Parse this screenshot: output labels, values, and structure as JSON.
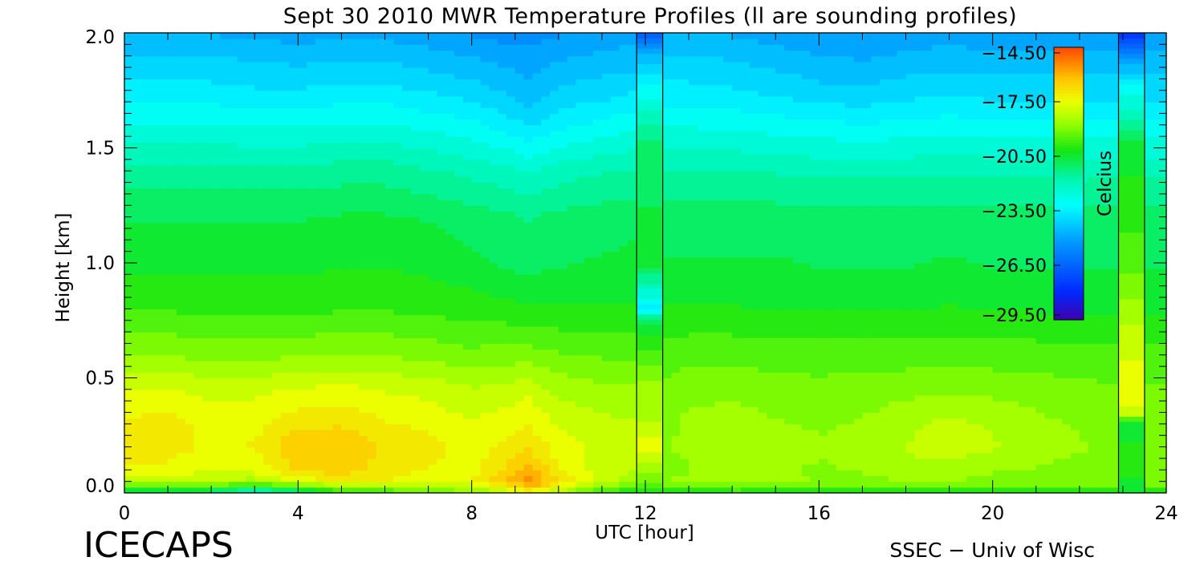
{
  "chart_data": {
    "type": "heatmap",
    "title": "Sept 30 2010 MWR Temperature Profiles (ll are sounding profiles)",
    "xlabel": "UTC [hour]",
    "ylabel": "Height [km]",
    "xlim": [
      0,
      24
    ],
    "ylim": [
      0,
      2.0
    ],
    "x_ticks": [
      "0",
      "4",
      "8",
      "12",
      "16",
      "20",
      "24"
    ],
    "y_ticks": [
      "0.0",
      "0.5",
      "1.0",
      "1.5",
      "2.0"
    ],
    "colorbar": {
      "label": "Celcius",
      "min": -29.5,
      "max": -14.5,
      "ticks": [
        "-14.50",
        "-17.50",
        "-20.50",
        "-23.50",
        "-26.50",
        "-29.50"
      ]
    },
    "sounding_profiles": [
      {
        "start_hour": 11.8,
        "end_hour": 12.4
      },
      {
        "start_hour": 22.9,
        "end_hour": 23.5
      }
    ],
    "heights_km": [
      0.0,
      0.05,
      0.1,
      0.2,
      0.3,
      0.45,
      0.6,
      0.8,
      1.0,
      1.2,
      1.4,
      1.6,
      1.75,
      1.85,
      2.0
    ],
    "hours": [
      0.3,
      1,
      2,
      3,
      4,
      5,
      6,
      7,
      8,
      9,
      9.3,
      10,
      11,
      11.8,
      12.5,
      13,
      14,
      15,
      16,
      17,
      18,
      19,
      20,
      21,
      22,
      22.9
    ],
    "temperature_c": [
      [
        -21.0,
        -21.2,
        -21.5,
        -22.5,
        -21.8,
        -20.5,
        -20.0,
        -19.5,
        -19.0,
        -18.0,
        -17.5,
        -18.5,
        -20.0,
        -20.5,
        -20.5,
        -20.5,
        -20.2,
        -20.3,
        -20.3,
        -20.3,
        -20.3,
        -20.3,
        -20.3,
        -20.3,
        -20.3,
        -20.3
      ],
      [
        -18.5,
        -18.3,
        -18.2,
        -18.5,
        -17.8,
        -17.0,
        -17.3,
        -17.5,
        -17.3,
        -16.0,
        -15.3,
        -16.8,
        -18.0,
        -18.5,
        -18.8,
        -18.5,
        -18.3,
        -18.6,
        -18.8,
        -18.9,
        -18.8,
        -18.8,
        -18.9,
        -18.8,
        -18.9,
        -18.9
      ],
      [
        -17.4,
        -17.4,
        -17.7,
        -17.6,
        -16.6,
        -16.5,
        -17.0,
        -17.3,
        -17.5,
        -16.4,
        -16.0,
        -17.2,
        -18.0,
        -18.3,
        -18.9,
        -18.8,
        -18.5,
        -18.7,
        -18.8,
        -18.7,
        -18.4,
        -18.4,
        -18.7,
        -18.8,
        -18.9,
        -19.0
      ],
      [
        -16.9,
        -17.0,
        -17.4,
        -17.2,
        -16.3,
        -16.3,
        -16.8,
        -17.0,
        -17.5,
        -17.0,
        -16.8,
        -17.5,
        -17.9,
        -18.1,
        -18.8,
        -18.6,
        -18.4,
        -18.5,
        -18.7,
        -18.6,
        -18.2,
        -18.0,
        -18.2,
        -18.5,
        -18.7,
        -18.9
      ],
      [
        -17.1,
        -17.0,
        -17.5,
        -17.4,
        -16.9,
        -16.8,
        -17.2,
        -17.4,
        -17.7,
        -17.4,
        -17.3,
        -17.8,
        -18.1,
        -18.2,
        -18.9,
        -18.6,
        -18.5,
        -18.7,
        -18.8,
        -18.7,
        -18.4,
        -18.1,
        -18.3,
        -18.6,
        -18.8,
        -19.0
      ],
      [
        -17.8,
        -17.7,
        -17.9,
        -17.9,
        -17.7,
        -17.6,
        -17.8,
        -17.9,
        -18.2,
        -18.0,
        -17.9,
        -18.4,
        -18.6,
        -18.7,
        -19.1,
        -18.9,
        -18.9,
        -19.0,
        -19.1,
        -19.0,
        -18.9,
        -18.8,
        -18.9,
        -19.0,
        -19.1,
        -19.2
      ],
      [
        -18.8,
        -18.8,
        -18.9,
        -18.9,
        -18.8,
        -18.7,
        -18.8,
        -18.9,
        -19.1,
        -19.0,
        -19.0,
        -19.2,
        -19.3,
        -19.4,
        -19.5,
        -19.4,
        -19.4,
        -19.5,
        -19.5,
        -19.5,
        -19.5,
        -19.4,
        -19.5,
        -19.5,
        -19.6,
        -19.6
      ],
      [
        -19.8,
        -19.8,
        -19.9,
        -19.9,
        -19.9,
        -19.8,
        -19.8,
        -19.9,
        -20.0,
        -20.1,
        -20.1,
        -20.2,
        -20.2,
        -20.2,
        -20.2,
        -20.2,
        -20.2,
        -20.3,
        -20.3,
        -20.3,
        -20.3,
        -20.2,
        -20.3,
        -20.3,
        -20.3,
        -20.3
      ],
      [
        -20.4,
        -20.4,
        -20.4,
        -20.4,
        -20.4,
        -20.3,
        -20.3,
        -20.4,
        -20.6,
        -20.9,
        -21.0,
        -20.8,
        -20.7,
        -20.6,
        -20.7,
        -20.7,
        -20.7,
        -20.7,
        -20.8,
        -20.8,
        -20.8,
        -20.7,
        -20.8,
        -20.8,
        -20.8,
        -20.8
      ],
      [
        -20.8,
        -20.8,
        -20.8,
        -20.8,
        -20.8,
        -20.7,
        -20.7,
        -20.8,
        -21.0,
        -21.2,
        -21.3,
        -21.1,
        -21.0,
        -20.9,
        -21.0,
        -21.0,
        -21.0,
        -21.0,
        -21.1,
        -21.1,
        -21.1,
        -21.0,
        -21.1,
        -21.1,
        -21.1,
        -21.1
      ],
      [
        -21.6,
        -21.6,
        -21.6,
        -21.6,
        -21.6,
        -21.5,
        -21.5,
        -21.7,
        -21.9,
        -22.1,
        -22.3,
        -22.0,
        -21.8,
        -21.7,
        -21.7,
        -21.7,
        -21.7,
        -21.8,
        -21.9,
        -21.9,
        -21.9,
        -21.8,
        -21.9,
        -21.9,
        -21.9,
        -21.9
      ],
      [
        -22.7,
        -22.7,
        -22.7,
        -22.8,
        -22.8,
        -22.7,
        -22.7,
        -22.9,
        -23.1,
        -23.6,
        -23.8,
        -23.4,
        -23.1,
        -22.9,
        -22.8,
        -22.8,
        -22.9,
        -23.0,
        -23.1,
        -23.2,
        -23.1,
        -23.0,
        -23.1,
        -23.1,
        -23.1,
        -23.1
      ],
      [
        -23.6,
        -23.6,
        -23.6,
        -23.7,
        -23.7,
        -23.6,
        -23.6,
        -23.8,
        -24.0,
        -24.4,
        -24.6,
        -24.2,
        -24.0,
        -23.8,
        -23.6,
        -23.6,
        -23.7,
        -23.9,
        -24.1,
        -24.2,
        -24.0,
        -23.9,
        -24.0,
        -24.0,
        -24.0,
        -24.0
      ],
      [
        -24.0,
        -24.0,
        -24.0,
        -24.1,
        -24.2,
        -24.1,
        -24.1,
        -24.3,
        -24.5,
        -24.8,
        -24.9,
        -24.6,
        -24.4,
        -24.3,
        -24.0,
        -24.0,
        -24.1,
        -24.3,
        -24.5,
        -24.6,
        -24.4,
        -24.3,
        -24.4,
        -24.4,
        -24.4,
        -24.4
      ],
      [
        -24.7,
        -24.7,
        -24.8,
        -24.9,
        -25.0,
        -24.9,
        -24.9,
        -25.1,
        -25.3,
        -25.5,
        -25.5,
        -25.3,
        -25.1,
        -25.0,
        -24.7,
        -24.7,
        -24.8,
        -25.0,
        -25.2,
        -25.3,
        -25.1,
        -25.0,
        -25.1,
        -25.1,
        -25.1,
        -25.1
      ]
    ],
    "sounding_temperature_c": [
      {
        "heights_km": [
          0.0,
          0.1,
          0.2,
          0.3,
          0.5,
          0.75,
          0.8,
          1.0,
          1.5,
          1.75,
          1.9,
          2.0
        ],
        "values": [
          -20.0,
          -18.5,
          -17.5,
          -18.2,
          -18.8,
          -20.8,
          -23.5,
          -20.5,
          -21.0,
          -23.0,
          -24.5,
          -26.5
        ]
      },
      {
        "heights_km": [
          0.0,
          0.1,
          0.2,
          0.3,
          0.35,
          0.5,
          0.8,
          1.0,
          1.5,
          1.75,
          1.85,
          1.95,
          2.0
        ],
        "values": [
          -20.8,
          -20.0,
          -20.2,
          -20.5,
          -17.8,
          -17.5,
          -18.5,
          -19.5,
          -20.5,
          -23.0,
          -24.5,
          -26.5,
          -27.5
        ]
      }
    ]
  },
  "logo": {
    "left_text": "ICECAPS",
    "right_text": "SSEC − Univ of Wisc"
  }
}
